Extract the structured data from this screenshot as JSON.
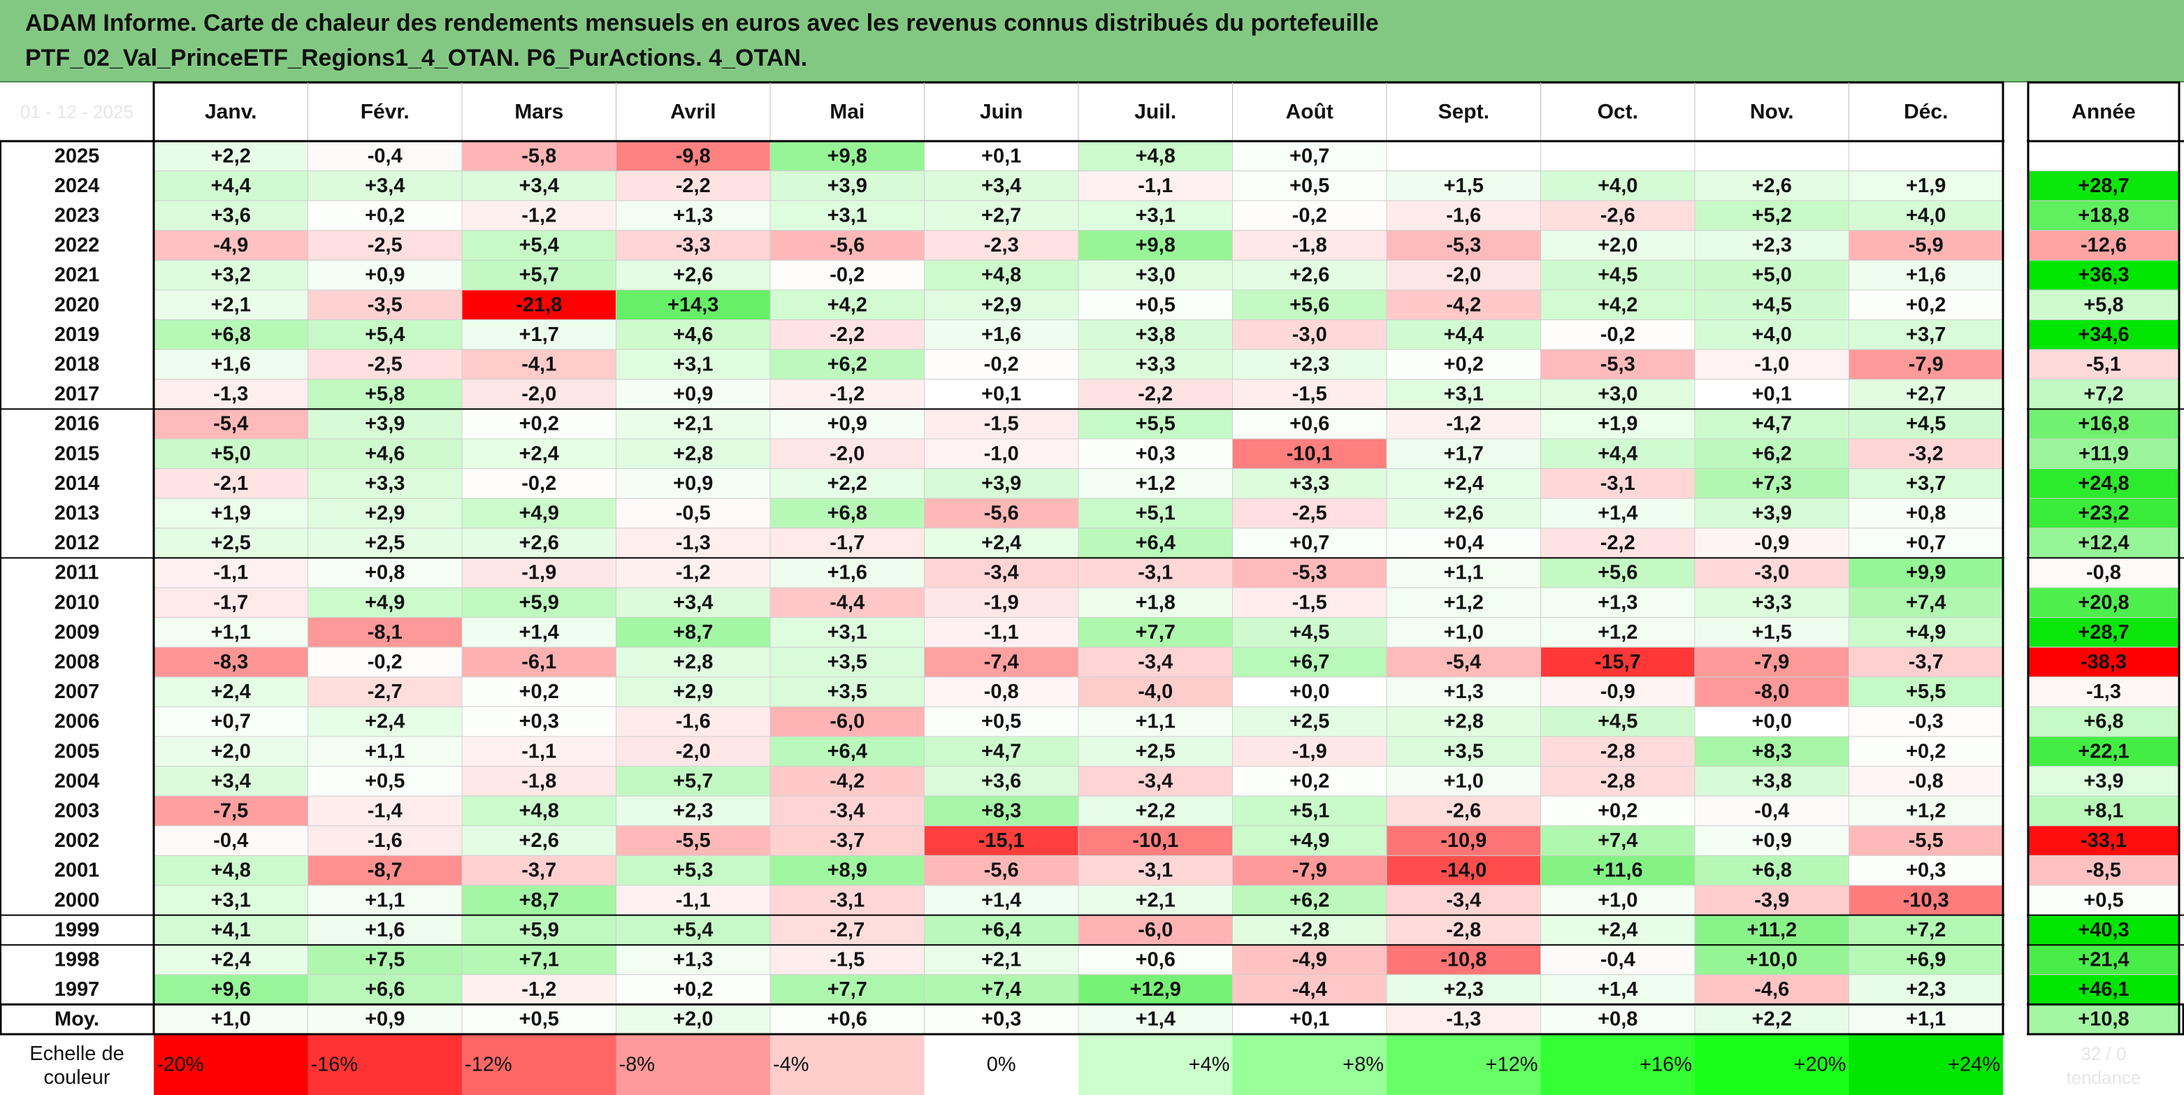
{
  "title": {
    "line1": "ADAM Informe. Carte de chaleur des rendements mensuels en euros avec les revenus connus distribués du portefeuille",
    "line2": "PTF_02_Val_PrinceETF_Regions1_4_OTAN. P6_PurActions. 4_OTAN."
  },
  "chart_data": {
    "type": "heatmap",
    "title": "ADAM Informe. Carte de chaleur des rendements mensuels en euros avec les revenus connus distribués du portefeuille PTF_02_Val_PrinceETF_Regions1_4_OTAN. P6_PurActions. 4_OTAN.",
    "columns": [
      "Janv.",
      "Févr.",
      "Mars",
      "Avril",
      "Mai",
      "Juin",
      "Juil.",
      "Août",
      "Sept.",
      "Oct.",
      "Nov.",
      "Déc."
    ],
    "year_column": "Année",
    "corner_label": "01 - 12 - 2025",
    "rows": [
      {
        "label": "2025",
        "values": [
          2.2,
          -0.4,
          -5.8,
          -9.8,
          9.8,
          0.1,
          4.8,
          0.7,
          null,
          null,
          null,
          null
        ],
        "year": null
      },
      {
        "label": "2024",
        "values": [
          4.4,
          3.4,
          3.4,
          -2.2,
          3.9,
          3.4,
          -1.1,
          0.5,
          1.5,
          4.0,
          2.6,
          1.9
        ],
        "year": 28.7
      },
      {
        "label": "2023",
        "values": [
          3.6,
          0.2,
          -1.2,
          1.3,
          3.1,
          2.7,
          3.1,
          -0.2,
          -1.6,
          -2.6,
          5.2,
          4.0
        ],
        "year": 18.8
      },
      {
        "label": "2022",
        "values": [
          -4.9,
          -2.5,
          5.4,
          -3.3,
          -5.6,
          -2.3,
          9.8,
          -1.8,
          -5.3,
          2.0,
          2.3,
          -5.9
        ],
        "year": -12.6
      },
      {
        "label": "2021",
        "values": [
          3.2,
          0.9,
          5.7,
          2.6,
          -0.2,
          4.8,
          3.0,
          2.6,
          -2.0,
          4.5,
          5.0,
          1.6
        ],
        "year": 36.3
      },
      {
        "label": "2020",
        "values": [
          2.1,
          -3.5,
          -21.8,
          14.3,
          4.2,
          2.9,
          0.5,
          5.6,
          -4.2,
          4.2,
          4.5,
          0.2
        ],
        "year": 5.8
      },
      {
        "label": "2019",
        "values": [
          6.8,
          5.4,
          1.7,
          4.6,
          -2.2,
          1.6,
          3.8,
          -3.0,
          4.4,
          -0.2,
          4.0,
          3.7
        ],
        "year": 34.6
      },
      {
        "label": "2018",
        "values": [
          1.6,
          -2.5,
          -4.1,
          3.1,
          6.2,
          -0.2,
          3.3,
          2.3,
          0.2,
          -5.3,
          -1.0,
          -7.9
        ],
        "year": -5.1
      },
      {
        "label": "2017",
        "values": [
          -1.3,
          5.8,
          -2.0,
          0.9,
          -1.2,
          0.1,
          -2.2,
          -1.5,
          3.1,
          3.0,
          0.1,
          2.7
        ],
        "year": 7.2
      },
      {
        "label": "2016",
        "values": [
          -5.4,
          3.9,
          0.2,
          2.1,
          0.9,
          -1.5,
          5.5,
          0.6,
          -1.2,
          1.9,
          4.7,
          4.5
        ],
        "year": 16.8
      },
      {
        "label": "2015",
        "values": [
          5.0,
          4.6,
          2.4,
          2.8,
          -2.0,
          -1.0,
          0.3,
          -10.1,
          1.7,
          4.4,
          6.2,
          -3.2
        ],
        "year": 11.9
      },
      {
        "label": "2014",
        "values": [
          -2.1,
          3.3,
          -0.2,
          0.9,
          2.2,
          3.9,
          1.2,
          3.3,
          2.4,
          -3.1,
          7.3,
          3.7
        ],
        "year": 24.8
      },
      {
        "label": "2013",
        "values": [
          1.9,
          2.9,
          4.9,
          -0.5,
          6.8,
          -5.6,
          5.1,
          -2.5,
          2.6,
          1.4,
          3.9,
          0.8
        ],
        "year": 23.2
      },
      {
        "label": "2012",
        "values": [
          2.5,
          2.5,
          2.6,
          -1.3,
          -1.7,
          2.4,
          6.4,
          0.7,
          0.4,
          -2.2,
          -0.9,
          0.7
        ],
        "year": 12.4
      },
      {
        "label": "2011",
        "values": [
          -1.1,
          0.8,
          -1.9,
          -1.2,
          1.6,
          -3.4,
          -3.1,
          -5.3,
          1.1,
          5.6,
          -3.0,
          9.9
        ],
        "year": -0.8
      },
      {
        "label": "2010",
        "values": [
          -1.7,
          4.9,
          5.9,
          3.4,
          -4.4,
          -1.9,
          1.8,
          -1.5,
          1.2,
          1.3,
          3.3,
          7.4
        ],
        "year": 20.8
      },
      {
        "label": "2009",
        "values": [
          1.1,
          -8.1,
          1.4,
          8.7,
          3.1,
          -1.1,
          7.7,
          4.5,
          1.0,
          1.2,
          1.5,
          4.9
        ],
        "year": 28.7
      },
      {
        "label": "2008",
        "values": [
          -8.3,
          -0.2,
          -6.1,
          2.8,
          3.5,
          -7.4,
          -3.4,
          6.7,
          -5.4,
          -15.7,
          -7.9,
          -3.7
        ],
        "year": -38.3
      },
      {
        "label": "2007",
        "values": [
          2.4,
          -2.7,
          0.2,
          2.9,
          3.5,
          -0.8,
          -4.0,
          0.0,
          1.3,
          -0.9,
          -8.0,
          5.5
        ],
        "year": -1.3
      },
      {
        "label": "2006",
        "values": [
          0.7,
          2.4,
          0.3,
          -1.6,
          -6.0,
          0.5,
          1.1,
          2.5,
          2.8,
          4.5,
          0.0,
          -0.3
        ],
        "year": 6.8
      },
      {
        "label": "2005",
        "values": [
          2.0,
          1.1,
          -1.1,
          -2.0,
          6.4,
          4.7,
          2.5,
          -1.9,
          3.5,
          -2.8,
          8.3,
          0.2
        ],
        "year": 22.1
      },
      {
        "label": "2004",
        "values": [
          3.4,
          0.5,
          -1.8,
          5.7,
          -4.2,
          3.6,
          -3.4,
          0.2,
          1.0,
          -2.8,
          3.8,
          -0.8
        ],
        "year": 3.9
      },
      {
        "label": "2003",
        "values": [
          -7.5,
          -1.4,
          4.8,
          2.3,
          -3.4,
          8.3,
          2.2,
          5.1,
          -2.6,
          0.2,
          -0.4,
          1.2
        ],
        "year": 8.1
      },
      {
        "label": "2002",
        "values": [
          -0.4,
          -1.6,
          2.6,
          -5.5,
          -3.7,
          -15.1,
          -10.1,
          4.9,
          -10.9,
          7.4,
          0.9,
          -5.5
        ],
        "year": -33.1
      },
      {
        "label": "2001",
        "values": [
          4.8,
          -8.7,
          -3.7,
          5.3,
          8.9,
          -5.6,
          -3.1,
          -7.9,
          -14.0,
          11.6,
          6.8,
          0.3
        ],
        "year": -8.5
      },
      {
        "label": "2000",
        "values": [
          3.1,
          1.1,
          8.7,
          -1.1,
          -3.1,
          1.4,
          2.1,
          6.2,
          -3.4,
          1.0,
          -3.9,
          -10.3
        ],
        "year": 0.5
      },
      {
        "label": "1999",
        "values": [
          4.1,
          1.6,
          5.9,
          5.4,
          -2.7,
          6.4,
          -6.0,
          2.8,
          -2.8,
          2.4,
          11.2,
          7.2
        ],
        "year": 40.3
      },
      {
        "label": "1998",
        "values": [
          2.4,
          7.5,
          7.1,
          1.3,
          -1.5,
          2.1,
          0.6,
          -4.9,
          -10.8,
          -0.4,
          10.0,
          6.9
        ],
        "year": 21.4
      },
      {
        "label": "1997",
        "values": [
          9.6,
          6.6,
          -1.2,
          0.2,
          7.7,
          7.4,
          12.9,
          -4.4,
          2.3,
          1.4,
          -4.6,
          2.3
        ],
        "year": 46.1
      }
    ],
    "average_row": {
      "label": "Moy.",
      "values": [
        1.0,
        0.9,
        0.5,
        2.0,
        0.6,
        0.3,
        1.4,
        0.1,
        -1.3,
        0.8,
        2.2,
        1.1
      ],
      "year": 10.8
    },
    "scale": {
      "label_line1": "Echelle de",
      "label_line2": "couleur",
      "entries": [
        {
          "text": "-20%",
          "value": -20,
          "color": "#ff0000",
          "align": "left"
        },
        {
          "text": "-16%",
          "value": -16,
          "color": "#ff3333",
          "align": "left"
        },
        {
          "text": "-12%",
          "value": -12,
          "color": "#ff6666",
          "align": "left"
        },
        {
          "text": "-8%",
          "value": -8,
          "color": "#ff9999",
          "align": "left"
        },
        {
          "text": "-4%",
          "value": -4,
          "color": "#ffcccc",
          "align": "left"
        },
        {
          "text": "0%",
          "value": 0,
          "color": "#ffffff",
          "align": "center"
        },
        {
          "text": "+4%",
          "value": 4,
          "color": "#ccffcc",
          "align": "right"
        },
        {
          "text": "+8%",
          "value": 8,
          "color": "#99ff99",
          "align": "right"
        },
        {
          "text": "+12%",
          "value": 12,
          "color": "#66ff66",
          "align": "right"
        },
        {
          "text": "+16%",
          "value": 16,
          "color": "#33ff33",
          "align": "right"
        },
        {
          "text": "+20%",
          "value": 20,
          "color": "#1aff1a",
          "align": "right"
        },
        {
          "text": "+24%",
          "value": 24,
          "color": "#00e600",
          "align": "right"
        }
      ],
      "year_cell_faint": [
        "32 / 0",
        "tendance"
      ]
    },
    "colors": {
      "title_band": "#83c882",
      "negative_full": "#ff0000",
      "positive_full": "#00e600",
      "neutral": "#ffffff",
      "grid": "#cfcfcf",
      "frame": "#000000"
    }
  }
}
